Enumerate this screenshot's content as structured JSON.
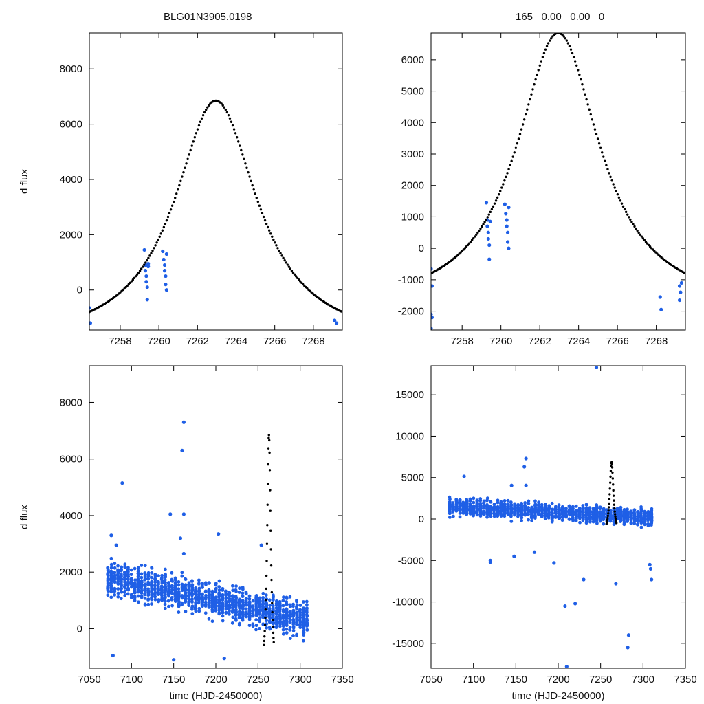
{
  "header": {
    "object_id": "BLG01N3905.0198",
    "fit_params": "165   0.00   0.00   0"
  },
  "chart_data": [
    {
      "type": "scatter",
      "panel": "top-left",
      "title": "BLG01N3905.0198",
      "xlabel": "",
      "ylabel": "d flux",
      "xlim": [
        7256.4,
        7269.5
      ],
      "ylim": [
        -1450,
        9300
      ],
      "xticks": [
        7258,
        7260,
        7262,
        7264,
        7266,
        7268
      ],
      "yticks": [
        0,
        2000,
        4000,
        6000,
        8000
      ],
      "series": [
        {
          "name": "observations",
          "color": "#1f5fe6",
          "points": [
            [
              7256.4,
              -650
            ],
            [
              7256.45,
              -1200
            ],
            [
              7259.25,
              1450
            ],
            [
              7259.3,
              900
            ],
            [
              7259.3,
              700
            ],
            [
              7259.35,
              500
            ],
            [
              7259.35,
              300
            ],
            [
              7259.4,
              100
            ],
            [
              7259.4,
              -350
            ],
            [
              7259.45,
              850
            ],
            [
              7259.45,
              950
            ],
            [
              7260.2,
              1400
            ],
            [
              7260.25,
              1100
            ],
            [
              7260.3,
              900
            ],
            [
              7260.3,
              700
            ],
            [
              7260.35,
              500
            ],
            [
              7260.35,
              200
            ],
            [
              7260.4,
              0
            ],
            [
              7260.4,
              1300
            ],
            [
              7269.1,
              -1100
            ],
            [
              7269.2,
              -1200
            ]
          ]
        },
        {
          "name": "model",
          "color": "#000000",
          "style": "dotted",
          "model": {
            "t0": 7262.95,
            "peak": 6850,
            "tE": 2.6,
            "base": -2000
          }
        }
      ]
    },
    {
      "type": "scatter",
      "panel": "top-right",
      "title": "165   0.00   0.00   0",
      "xlabel": "",
      "ylabel": "",
      "xlim": [
        7256.4,
        7269.5
      ],
      "ylim": [
        -2600,
        6850
      ],
      "xticks": [
        7258,
        7260,
        7262,
        7264,
        7266,
        7268
      ],
      "yticks": [
        -2000,
        -1000,
        0,
        1000,
        2000,
        3000,
        4000,
        5000,
        6000
      ],
      "series": [
        {
          "name": "observations",
          "color": "#1f5fe6",
          "points": [
            [
              7256.4,
              -650
            ],
            [
              7256.45,
              -1200
            ],
            [
              7256.4,
              -2100
            ],
            [
              7256.45,
              -2200
            ],
            [
              7256.4,
              -2550
            ],
            [
              7259.25,
              1450
            ],
            [
              7259.3,
              900
            ],
            [
              7259.3,
              700
            ],
            [
              7259.35,
              500
            ],
            [
              7259.35,
              300
            ],
            [
              7259.4,
              100
            ],
            [
              7259.4,
              -350
            ],
            [
              7259.45,
              850
            ],
            [
              7260.2,
              1400
            ],
            [
              7260.25,
              1100
            ],
            [
              7260.3,
              900
            ],
            [
              7260.3,
              700
            ],
            [
              7260.35,
              500
            ],
            [
              7260.35,
              200
            ],
            [
              7260.4,
              0
            ],
            [
              7260.4,
              1300
            ],
            [
              7268.2,
              -1550
            ],
            [
              7268.25,
              -1950
            ],
            [
              7269.2,
              -1200
            ],
            [
              7269.25,
              -1400
            ],
            [
              7269.2,
              -1650
            ],
            [
              7269.3,
              -1100
            ]
          ]
        },
        {
          "name": "model",
          "color": "#000000",
          "style": "dotted",
          "model": {
            "t0": 7262.95,
            "peak": 6850,
            "tE": 2.6,
            "base": -2000
          }
        }
      ]
    },
    {
      "type": "scatter",
      "panel": "bottom-left",
      "title": "",
      "xlabel": "time (HJD-2450000)",
      "ylabel": "d flux",
      "xlim": [
        7050,
        7350
      ],
      "ylim": [
        -1400,
        9300
      ],
      "xticks": [
        7050,
        7100,
        7150,
        7200,
        7250,
        7300,
        7350
      ],
      "yticks": [
        0,
        2000,
        4000,
        6000,
        8000
      ],
      "series": [
        {
          "name": "observations",
          "color": "#1f5fe6",
          "points": [
            [
              7089,
              5150
            ],
            [
              7162,
              7300
            ],
            [
              7160,
              6300
            ],
            [
              7162,
              4050
            ],
            [
              7146,
              4050
            ],
            [
              7076,
              3300
            ],
            [
              7203,
              3350
            ],
            [
              7158,
              3200
            ],
            [
              7162,
              2650
            ],
            [
              7082,
              2950
            ],
            [
              7254,
              2950
            ],
            [
              7078,
              -950
            ],
            [
              7150,
              -1100
            ],
            [
              7210,
              -1050
            ]
          ],
          "generated_cloud": {
            "x_range": [
              7072,
              7308
            ],
            "y_mean_start": 1800,
            "y_mean_end": 300,
            "y_spread": 800,
            "count": 1300
          }
        },
        {
          "name": "model",
          "color": "#000000",
          "style": "dotted",
          "model": {
            "t0": 7262.95,
            "peak": 6850,
            "tE": 2.6,
            "base": -2000
          }
        }
      ]
    },
    {
      "type": "scatter",
      "panel": "bottom-right",
      "title": "",
      "xlabel": "time (HJD-2450000)",
      "ylabel": "",
      "xlim": [
        7050,
        7350
      ],
      "ylim": [
        -18000,
        18500
      ],
      "xticks": [
        7050,
        7100,
        7150,
        7200,
        7250,
        7300,
        7350
      ],
      "yticks": [
        -15000,
        -10000,
        -5000,
        0,
        5000,
        10000,
        15000
      ],
      "series": [
        {
          "name": "observations",
          "color": "#1f5fe6",
          "points": [
            [
              7245,
              18300
            ],
            [
              7089,
              5150
            ],
            [
              7162,
              7300
            ],
            [
              7160,
              6300
            ],
            [
              7145,
              4050
            ],
            [
              7162,
              4050
            ],
            [
              7120,
              -5000
            ],
            [
              7120,
              -5200
            ],
            [
              7148,
              -4500
            ],
            [
              7172,
              -4000
            ],
            [
              7195,
              -5300
            ],
            [
              7208,
              -10500
            ],
            [
              7220,
              -10200
            ],
            [
              7230,
              -7300
            ],
            [
              7268,
              -7800
            ],
            [
              7283,
              -14000
            ],
            [
              7282,
              -15500
            ],
            [
              7210,
              -17800
            ],
            [
              7308,
              -5500
            ],
            [
              7309,
              -6000
            ],
            [
              7310,
              -7300
            ]
          ],
          "generated_cloud": {
            "x_range": [
              7072,
              7310
            ],
            "y_mean_start": 1500,
            "y_mean_end": 200,
            "y_spread": 1300,
            "count": 1300
          }
        },
        {
          "name": "model",
          "color": "#000000",
          "style": "dotted",
          "model": {
            "t0": 7262.95,
            "peak": 6850,
            "tE": 2.6,
            "base": -2000
          }
        }
      ]
    }
  ]
}
